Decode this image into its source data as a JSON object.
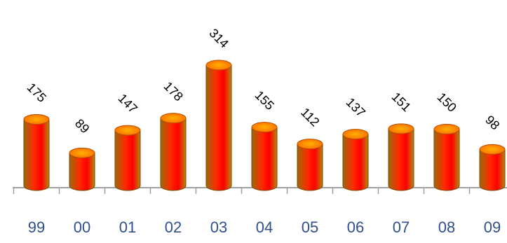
{
  "chart_data": {
    "type": "bar",
    "title": "",
    "xlabel": "",
    "ylabel": "",
    "categories": [
      "99",
      "00",
      "01",
      "02",
      "03",
      "04",
      "05",
      "06",
      "07",
      "08",
      "09"
    ],
    "values": [
      175,
      89,
      147,
      178,
      314,
      155,
      112,
      137,
      151,
      150,
      98
    ],
    "data_labels": [
      "175",
      "89",
      "147",
      "178",
      "314",
      "155",
      "112",
      "137",
      "151",
      "150",
      "98"
    ],
    "ylim": [
      0,
      314
    ],
    "grid": false,
    "legend": "none",
    "bar_style": "3d-cylinder",
    "colors": {
      "bar_gradient_outer": "#b36a06",
      "bar_gradient_mid": "#ff1a00",
      "bar_top": "#ff8800",
      "axis": "#a0a0a0",
      "category_text": "#2f4f8f",
      "label_text": "#000000"
    }
  }
}
